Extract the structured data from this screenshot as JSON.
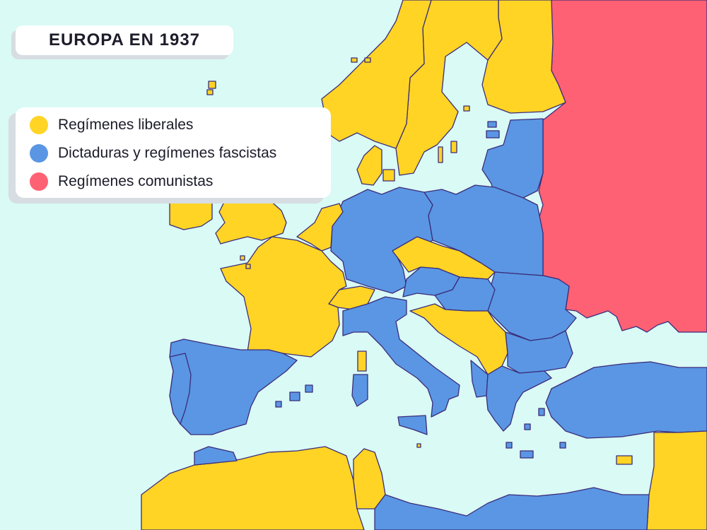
{
  "title": "EUROPA EN 1937",
  "legend": {
    "items": [
      {
        "label": "Regímenes liberales",
        "color": "#FFD424"
      },
      {
        "label": "Dictaduras y regímenes fascistas",
        "color": "#5A96E3"
      },
      {
        "label": "Regímenes comunistas",
        "color": "#FF6174"
      }
    ]
  },
  "colors": {
    "sea": "#D9FAF5",
    "liberal": "#FFD424",
    "dictatorship": "#5A96E3",
    "communist": "#FF6174",
    "border": "#3B2C7A"
  }
}
